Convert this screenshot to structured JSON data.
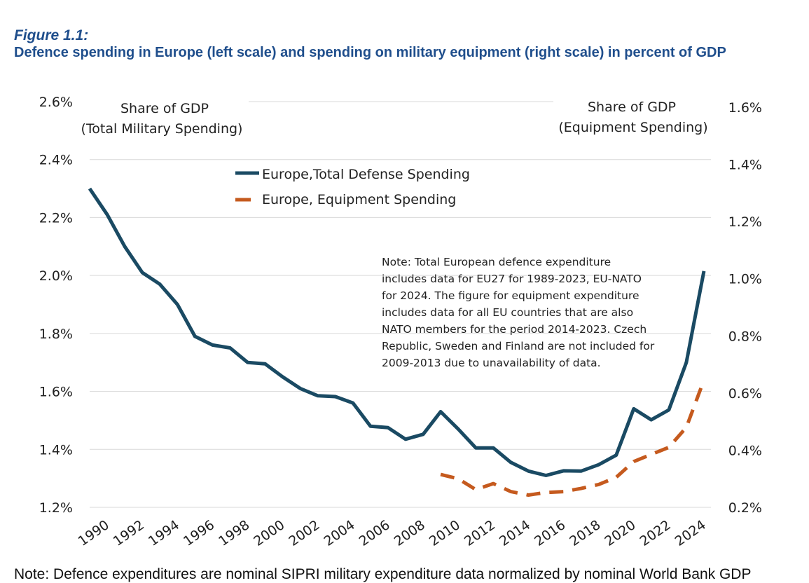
{
  "figure": {
    "label": "Figure 1.1:",
    "title": "Defence spending in Europe (left scale) and spending on military equipment (right scale) in percent of GDP",
    "footnote": "Note: Defence expenditures are nominal SIPRI military expenditure data normalized by nominal World Bank GDP"
  },
  "chart_data": {
    "type": "line",
    "title": "Defence spending in Europe (left scale) and spending on military equipment (right scale) in percent of GDP",
    "left_axis": {
      "label_line1": "Share of GDP",
      "label_line2": "(Total Military Spending)",
      "range": [
        1.2,
        2.6
      ],
      "ticks": [
        "1.2%",
        "1.4%",
        "1.6%",
        "1.8%",
        "2.0%",
        "2.2%",
        "2.4%",
        "2.6%"
      ]
    },
    "right_axis": {
      "label_line1": "Share of GDP",
      "label_line2": "(Equipment Spending)",
      "range": [
        0.2,
        1.6
      ],
      "ticks": [
        "0.2%",
        "0.4%",
        "0.6%",
        "0.8%",
        "1.0%",
        "1.2%",
        "1.4%",
        "1.6%"
      ]
    },
    "x_ticks": [
      "1990",
      "1992",
      "1994",
      "1996",
      "1998",
      "2000",
      "2002",
      "2004",
      "2006",
      "2008",
      "2010",
      "2012",
      "2014",
      "2016",
      "2018",
      "2020",
      "2022",
      "2024"
    ],
    "grid": true,
    "series": [
      {
        "name": "Europe,Total Defense Spending",
        "axis": "left",
        "color": "#1a4a63",
        "style": "solid",
        "years": [
          1989,
          1990,
          1991,
          1992,
          1993,
          1994,
          1995,
          1996,
          1997,
          1998,
          1999,
          2000,
          2001,
          2002,
          2003,
          2004,
          2005,
          2006,
          2007,
          2008,
          2009,
          2010,
          2011,
          2012,
          2013,
          2014,
          2015,
          2016,
          2017,
          2018,
          2019,
          2020,
          2021,
          2022,
          2023,
          2024
        ],
        "values": [
          2.3,
          2.21,
          2.1,
          2.01,
          1.97,
          1.9,
          1.79,
          1.76,
          1.75,
          1.7,
          1.695,
          1.65,
          1.61,
          1.585,
          1.582,
          1.56,
          1.48,
          1.475,
          1.435,
          1.452,
          1.53,
          1.47,
          1.405,
          1.405,
          1.355,
          1.325,
          1.31,
          1.326,
          1.325,
          1.347,
          1.38,
          1.54,
          1.502,
          1.536,
          1.7,
          2.015
        ]
      },
      {
        "name": "Europe, Equipment Spending",
        "axis": "right",
        "color": "#c55a1e",
        "style": "dashed",
        "years": [
          2009,
          2010,
          2011,
          2012,
          2013,
          2014,
          2015,
          2016,
          2017,
          2018,
          2019,
          2020,
          2021,
          2022,
          2023,
          2024
        ],
        "values": [
          0.315,
          0.3,
          0.262,
          0.283,
          0.255,
          0.243,
          0.252,
          0.255,
          0.266,
          0.28,
          0.305,
          0.36,
          0.385,
          0.41,
          0.48,
          0.645
        ]
      }
    ],
    "annotation": [
      "Note: Total European defence expenditure",
      "includes data for EU27 for 1989-2023, EU-NATO",
      "for 2024. The figure for equipment expenditure",
      "includes data for all EU countries that are also",
      "NATO members for the period 2014-2023. Czech",
      "Republic, Sweden and Finland are not included for",
      "2009-2013 due to unavailability of data."
    ]
  }
}
